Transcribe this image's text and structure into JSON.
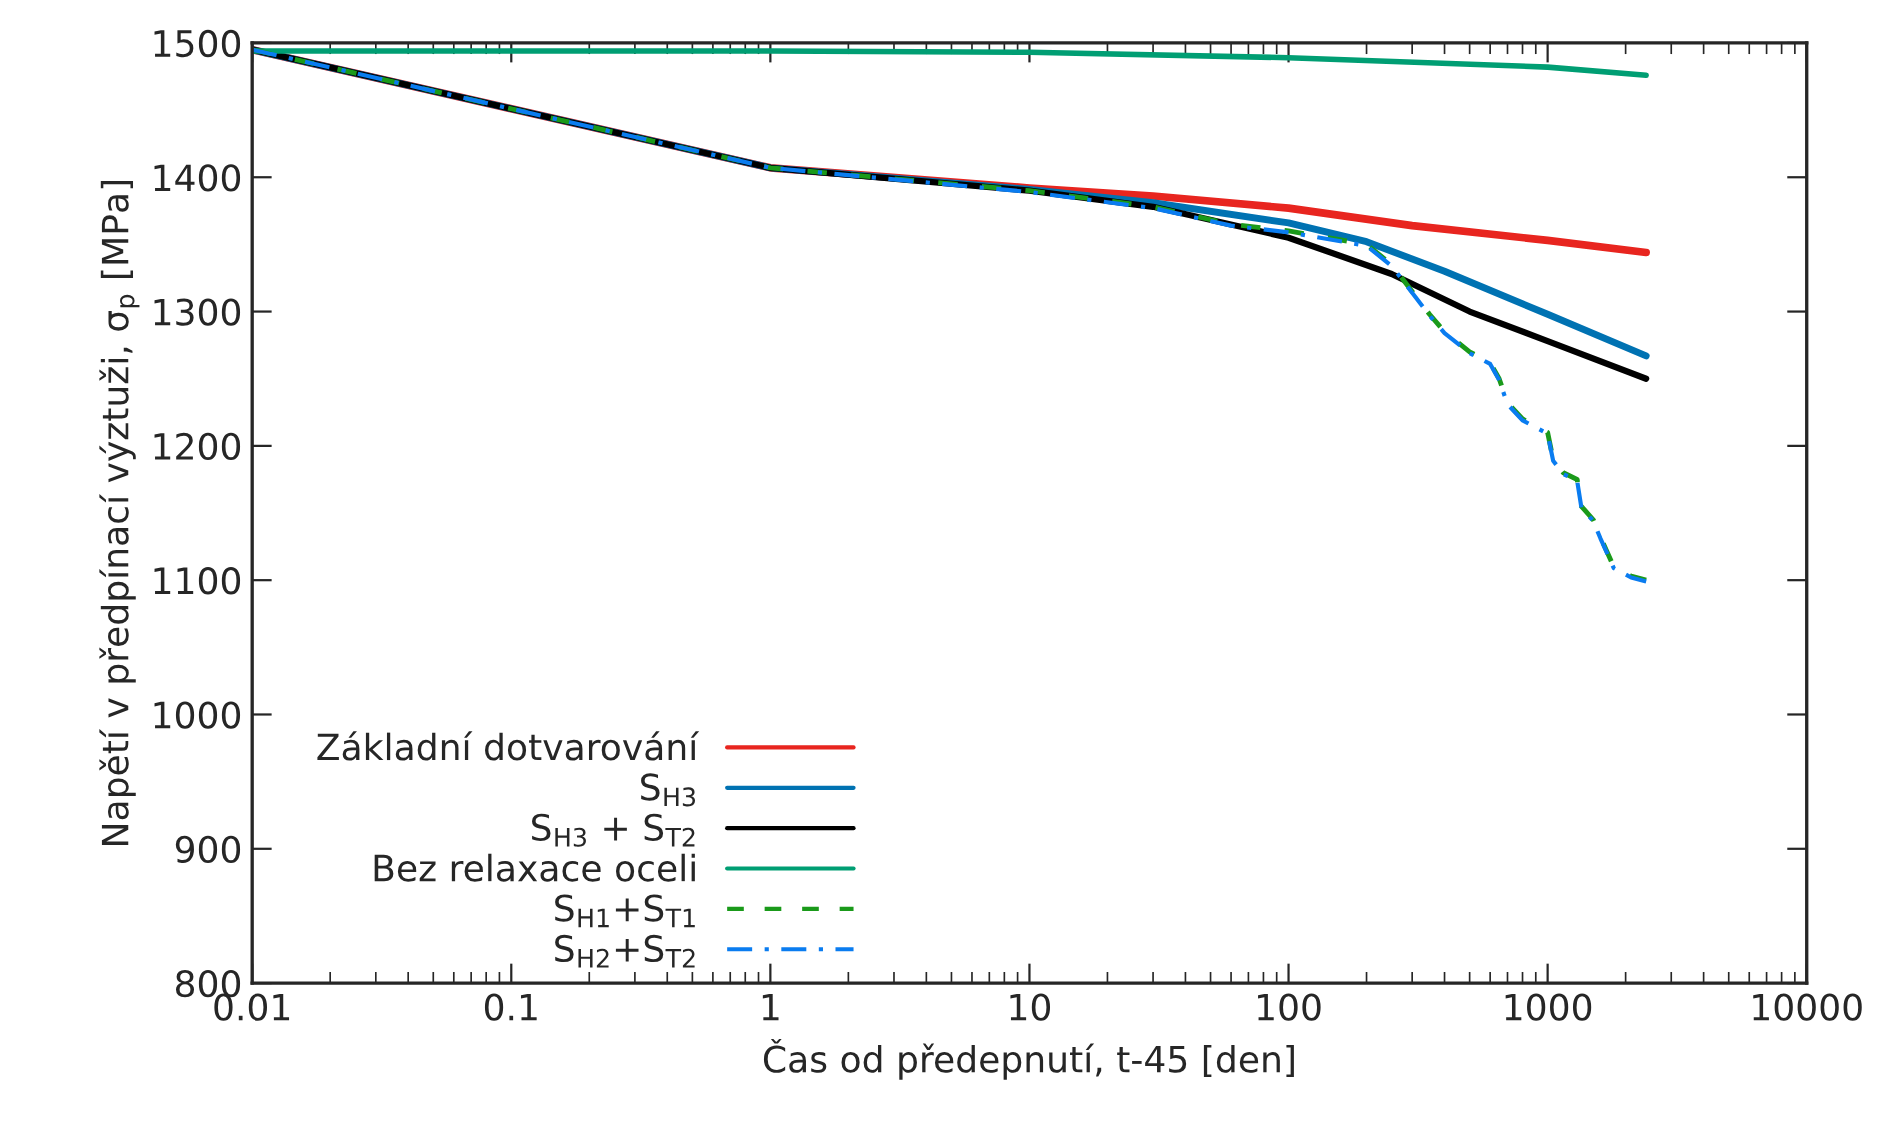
{
  "chart_data": {
    "type": "line",
    "xlabel": "Čas od předepnutí, t-45 [den]",
    "ylabel": "Napětí v předpínací výztuži, σ$_{p}$ [MPa]",
    "log": "x",
    "xlim": [
      0.01,
      10000
    ],
    "xticks": [
      0.01,
      0.1,
      1,
      10,
      100,
      1000,
      10000
    ],
    "ylim": [
      800,
      1500
    ],
    "yticks": [
      800,
      900,
      1000,
      1100,
      1200,
      1300,
      1400,
      1500
    ],
    "grid": false,
    "legend": "bottom left",
    "marker": "none",
    "series": [
      {
        "name": "Základní dotvarování",
        "color": "#e8251f",
        "line_style": "solid",
        "x": [
          0.01,
          1,
          10,
          30,
          100,
          300,
          1000,
          2400
        ],
        "values": [
          1495,
          1407,
          1392,
          1386,
          1377,
          1364,
          1353,
          1344
        ]
      },
      {
        "name": "S$_{H3}$",
        "color": "#0072b2",
        "line_style": "solid",
        "x": [
          0.01,
          1,
          10,
          30,
          100,
          200,
          400,
          1000,
          2400
        ],
        "values": [
          1495,
          1407,
          1391,
          1381,
          1366,
          1352,
          1330,
          1298,
          1267
        ]
      },
      {
        "name": "S$_{H3}$ + S$_{T2}$",
        "color": "#000000",
        "line_style": "solid",
        "x": [
          0.01,
          1,
          10,
          30,
          100,
          250,
          500,
          1000,
          2400
        ],
        "values": [
          1495,
          1407,
          1390,
          1378,
          1355,
          1328,
          1300,
          1278,
          1250
        ]
      },
      {
        "name": "Bez relaxace oceli",
        "color": "#009e73",
        "line_style": "solid",
        "x": [
          0.01,
          1,
          10,
          100,
          1000,
          2400
        ],
        "values": [
          1494,
          1494,
          1493,
          1489,
          1482,
          1476
        ]
      },
      {
        "name": "S$_{H1}$+S$_{T1}$",
        "color": "#1a9a1a",
        "line_style": "dashed",
        "x": [
          0.01,
          1,
          10,
          30,
          60,
          100,
          200,
          250,
          300,
          350,
          400,
          500,
          600,
          650,
          700,
          800,
          1000,
          1050,
          1150,
          1300,
          1350,
          1500,
          1600,
          1800,
          2100,
          2400
        ],
        "values": [
          1495,
          1407,
          1390,
          1378,
          1365,
          1360,
          1350,
          1335,
          1315,
          1298,
          1285,
          1270,
          1262,
          1250,
          1232,
          1220,
          1210,
          1190,
          1180,
          1175,
          1155,
          1145,
          1132,
          1110,
          1103,
          1100
        ]
      },
      {
        "name": "S$_{H2}$+S$_{T2}$",
        "color": "#0a7cf0",
        "line_style": "dashdot",
        "x": [
          0.01,
          1,
          10,
          30,
          60,
          100,
          200,
          250,
          300,
          350,
          400,
          500,
          600,
          650,
          700,
          800,
          1000,
          1050,
          1150,
          1300,
          1350,
          1500,
          1600,
          1800,
          2100,
          2400
        ],
        "values": [
          1495,
          1407,
          1389,
          1377,
          1364,
          1359,
          1349,
          1334,
          1314,
          1297,
          1284,
          1269,
          1261,
          1249,
          1231,
          1219,
          1209,
          1189,
          1179,
          1174,
          1154,
          1144,
          1131,
          1109,
          1102,
          1099
        ]
      }
    ]
  }
}
